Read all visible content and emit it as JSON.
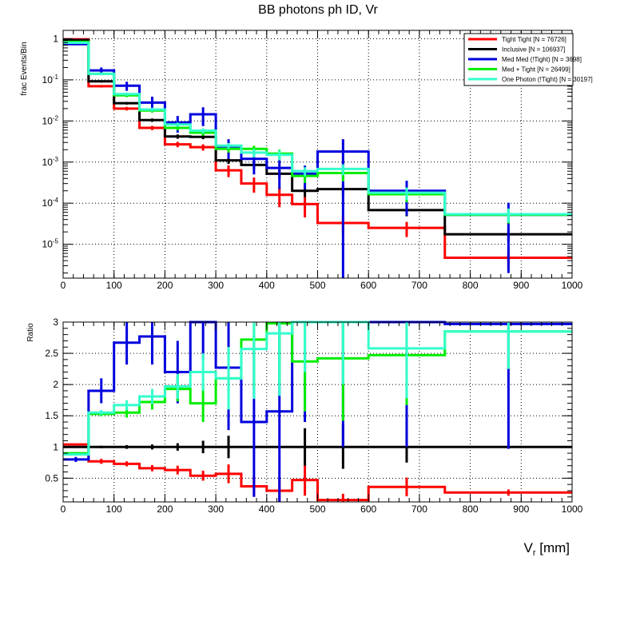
{
  "colors": {
    "tight_tight": "#ff0000",
    "inclusive": "#000000",
    "med_med": "#0000dd",
    "med_tight": "#00ee00",
    "one_photon": "#33ffcc",
    "grid": "#000000",
    "background": "#ffffff"
  },
  "chart_data": [
    {
      "type": "line",
      "style": "step histogram with error bars",
      "title": "BB photons ph ID, Vr",
      "ylabel": "frac Events/Bin",
      "xlabel": "",
      "xlim": [
        0,
        1000
      ],
      "ylim": [
        1.5e-06,
        1.6
      ],
      "yscale": "log",
      "grid": true,
      "legend_position": "top-right",
      "x_ticks": [
        0,
        100,
        200,
        300,
        400,
        500,
        600,
        700,
        800,
        900,
        1000
      ],
      "y_ticks": [
        {
          "value": 1,
          "base": "1",
          "exp": ""
        },
        {
          "value": 0.1,
          "base": "10",
          "exp": "-1"
        },
        {
          "value": 0.01,
          "base": "10",
          "exp": "-2"
        },
        {
          "value": 0.001,
          "base": "10",
          "exp": "-3"
        },
        {
          "value": 0.0001,
          "base": "10",
          "exp": "-4"
        },
        {
          "value": 1e-05,
          "base": "10",
          "exp": "-5"
        }
      ],
      "bin_edges": [
        0,
        50,
        100,
        150,
        200,
        250,
        300,
        350,
        400,
        450,
        500,
        600,
        750,
        1000
      ],
      "series": [
        {
          "key": "tight_tight",
          "name": "Tight Tight [N = 76726]",
          "values": [
            0.97,
            0.07,
            0.02,
            0.0068,
            0.0027,
            0.0023,
            0.00063,
            0.0003,
            0.00016,
            9.5e-05,
            3.3e-05,
            2.5e-05,
            4.7e-06
          ],
          "errors": [
            0.01,
            0.005,
            0.002,
            0.0008,
            0.0004,
            0.0004,
            0.0002,
            0.00012,
            8e-05,
            5e-05,
            1.5e-05,
            1e-05,
            2e-06
          ]
        },
        {
          "key": "inclusive",
          "name": "Inclusive [N = 106937]",
          "values": [
            0.93,
            0.092,
            0.027,
            0.0105,
            0.0042,
            0.0041,
            0.0011,
            0.00085,
            0.00052,
            0.0002,
            0.00022,
            6.8e-05,
            1.75e-05
          ],
          "errors": [
            0.01,
            0.006,
            0.002,
            0.001,
            0.0005,
            0.0005,
            0.0002,
            0.00016,
            0.00012,
            6e-05,
            6e-05,
            2e-05,
            6e-06
          ]
        },
        {
          "key": "med_med",
          "name": "Med Med (!Tight) [N = 3698]",
          "values": [
            0.74,
            0.17,
            0.072,
            0.028,
            0.0092,
            0.0145,
            0.0024,
            0.0012,
            0.00072,
            0.00052,
            0.0018,
            0.0002,
            5.2e-05
          ],
          "errors": [
            0.03,
            0.03,
            0.018,
            0.011,
            0.004,
            0.007,
            0.0012,
            0.0007,
            0.0005,
            0.0003,
            0.0018,
            0.00015,
            5e-05
          ]
        },
        {
          "key": "med_tight",
          "name": "Med + Tight [N = 26499]",
          "values": [
            0.84,
            0.14,
            0.042,
            0.018,
            0.0068,
            0.0052,
            0.0021,
            0.0021,
            0.0016,
            0.00046,
            0.00054,
            0.000165,
            5.2e-05
          ],
          "errors": [
            0.02,
            0.01,
            0.004,
            0.002,
            0.0009,
            0.0008,
            0.0004,
            0.0004,
            0.0004,
            0.00015,
            0.0002,
            6e-05,
            2e-05
          ]
        },
        {
          "key": "one_photon",
          "name": "One Photon (!Tight) [N = 30197]",
          "values": [
            0.8,
            0.14,
            0.045,
            0.019,
            0.0082,
            0.0058,
            0.0025,
            0.0017,
            0.0015,
            0.0006,
            0.00068,
            0.00018,
            5.4e-05
          ],
          "errors": [
            0.02,
            0.01,
            0.004,
            0.002,
            0.0009,
            0.0008,
            0.0004,
            0.0004,
            0.0004,
            0.00015,
            0.0002,
            6e-05,
            2e-05
          ]
        }
      ]
    },
    {
      "type": "line",
      "style": "step ratio histogram with error bars",
      "title": "",
      "ylabel": "Ratio",
      "xlabel": "V",
      "xlabel_sub": "r",
      "xlabel_unit": " [mm]",
      "xlim": [
        0,
        1000
      ],
      "ylim": [
        0.12,
        3.0
      ],
      "yscale": "linear",
      "grid": true,
      "x_ticks": [
        0,
        100,
        200,
        300,
        400,
        500,
        600,
        700,
        800,
        900,
        1000
      ],
      "y_ticks": [
        0.5,
        1,
        1.5,
        2,
        2.5,
        3
      ],
      "bin_edges": [
        0,
        50,
        100,
        150,
        200,
        250,
        300,
        350,
        400,
        450,
        500,
        600,
        750,
        1000
      ],
      "series": [
        {
          "key": "tight_tight",
          "name": "Tight Tight",
          "values": [
            1.04,
            0.77,
            0.73,
            0.66,
            0.63,
            0.54,
            0.57,
            0.37,
            0.3,
            0.47,
            0.15,
            0.36,
            0.27
          ],
          "errors": [
            0.01,
            0.04,
            0.04,
            0.05,
            0.07,
            0.08,
            0.15,
            0.15,
            0.18,
            0.25,
            0.1,
            0.15,
            0.05
          ]
        },
        {
          "key": "inclusive",
          "name": "Inclusive",
          "values": [
            1.0,
            1.0,
            1.0,
            1.0,
            1.0,
            1.0,
            1.0,
            1.0,
            1.0,
            1.0,
            1.0,
            1.0,
            1.0
          ],
          "errors": [
            0.01,
            0.02,
            0.03,
            0.04,
            0.06,
            0.1,
            0.18,
            0.0,
            0.0,
            0.3,
            0.35,
            0.25,
            0.0
          ]
        },
        {
          "key": "med_med",
          "name": "Med Med (!Tight)",
          "values": [
            0.8,
            1.9,
            2.67,
            2.77,
            2.2,
            3.0,
            2.27,
            1.4,
            1.57,
            3.0,
            3.0,
            3.0,
            2.97
          ],
          "errors": [
            0.04,
            0.2,
            0.35,
            0.45,
            0.5,
            0.6,
            1.0,
            1.2,
            1.5,
            1.6,
            2.0,
            2.0,
            2.0
          ]
        },
        {
          "key": "med_tight",
          "name": "Med + Tight",
          "values": [
            0.9,
            1.53,
            1.55,
            1.72,
            1.93,
            1.7,
            2.1,
            2.72,
            2.98,
            2.37,
            2.42,
            2.47,
            2.85
          ],
          "errors": [
            0.02,
            0.04,
            0.08,
            0.12,
            0.2,
            0.3,
            0.5,
            0.8,
            1.0,
            0.8,
            1.0,
            0.8,
            0.6
          ]
        },
        {
          "key": "one_photon",
          "name": "One Photon (!Tight)",
          "values": [
            0.88,
            1.55,
            1.67,
            1.81,
            1.97,
            2.2,
            2.1,
            2.57,
            2.82,
            3.0,
            3.0,
            2.58,
            2.85
          ],
          "errors": [
            0.02,
            0.04,
            0.08,
            0.12,
            0.2,
            0.3,
            0.5,
            0.8,
            1.0,
            0.8,
            1.0,
            0.8,
            0.6
          ]
        }
      ]
    }
  ]
}
